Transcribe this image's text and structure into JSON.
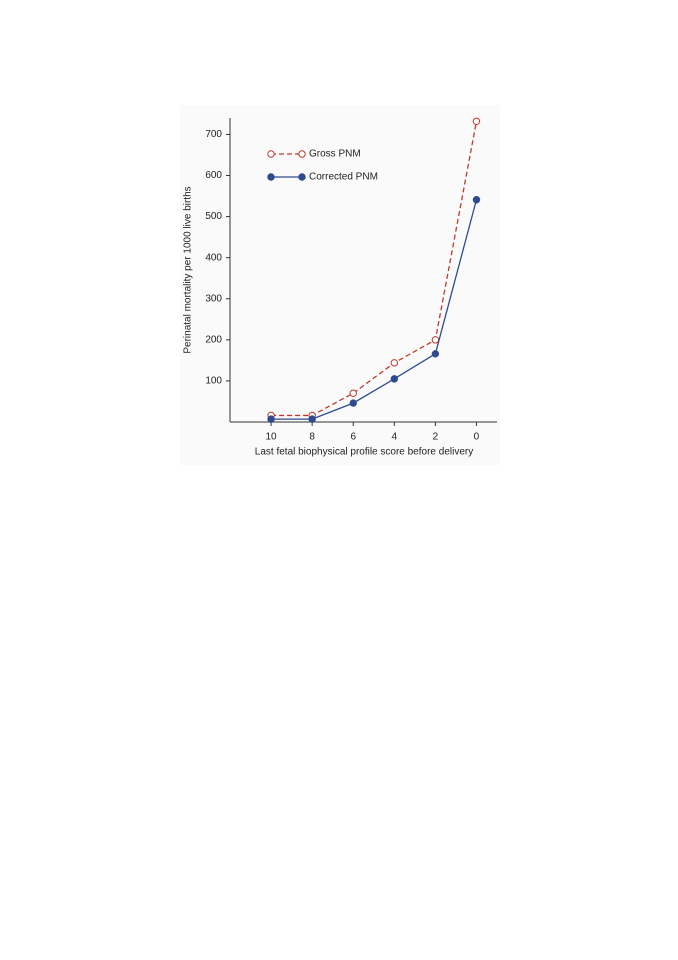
{
  "chart_data": {
    "type": "line",
    "y_label": "Perinatal mortality per 1000 live births",
    "x_label": "Last fetal biophysical profile score before delivery",
    "x": [
      10,
      8,
      6,
      4,
      2,
      0
    ],
    "xlim": [
      12,
      -1
    ],
    "xticks": [
      10,
      8,
      6,
      4,
      2,
      0
    ],
    "ylim": [
      0,
      740
    ],
    "yticks": [
      100,
      200,
      300,
      400,
      500,
      600,
      700
    ],
    "legend": "upper left",
    "series": [
      {
        "name": "Gross PNM",
        "color": "#c0392b",
        "dashed": true,
        "filled": false,
        "values": [
          16,
          16,
          70,
          144,
          200,
          732
        ]
      },
      {
        "name": "Corrected PNM",
        "color": "#2f4b8f",
        "dashed": false,
        "filled": true,
        "values": [
          7,
          7,
          46,
          105,
          166,
          541
        ]
      }
    ]
  }
}
